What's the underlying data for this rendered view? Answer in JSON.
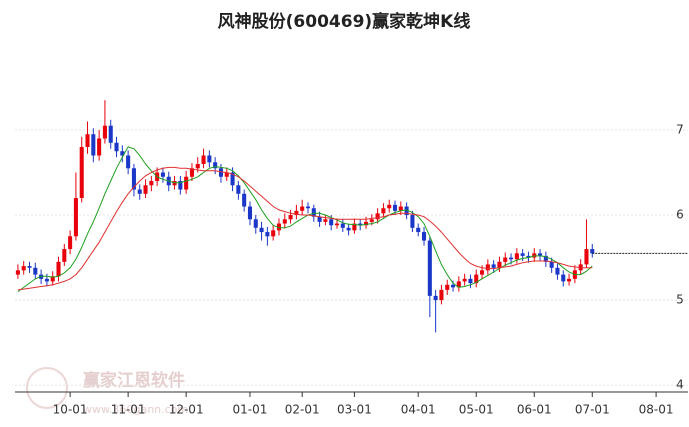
{
  "chart_data": {
    "type": "candlestick",
    "title": "风神股份(600469)赢家乾坤K线",
    "watermark": "赢家江恩软件",
    "watermark_url": "www.360gann.com",
    "up_color": "#e8000b",
    "down_color": "#1a37c8",
    "xlim": [
      0,
      116
    ],
    "xticks": [
      {
        "value": 9.5,
        "label": "10-01"
      },
      {
        "value": 19.5,
        "label": "11-01"
      },
      {
        "value": 29.5,
        "label": "12-01"
      },
      {
        "value": 40.5,
        "label": "01-01"
      },
      {
        "value": 49.5,
        "label": "02-01"
      },
      {
        "value": 58.5,
        "label": "03-01"
      },
      {
        "value": 69.5,
        "label": "04-01"
      },
      {
        "value": 79.5,
        "label": "05-01"
      },
      {
        "value": 89.5,
        "label": "06-01"
      },
      {
        "value": 99.5,
        "label": "07-01"
      },
      {
        "value": 110.5,
        "label": "08-01"
      }
    ],
    "ylim": [
      3.92,
      7.94
    ],
    "yticks": [
      4,
      5,
      6,
      7
    ],
    "grid": true,
    "ohlc": [
      [
        5.3,
        5.42,
        5.25,
        5.35
      ],
      [
        5.35,
        5.46,
        5.3,
        5.4
      ],
      [
        5.4,
        5.45,
        5.32,
        5.38
      ],
      [
        5.38,
        5.44,
        5.25,
        5.3
      ],
      [
        5.3,
        5.36,
        5.19,
        5.25
      ],
      [
        5.25,
        5.31,
        5.16,
        5.22
      ],
      [
        5.22,
        5.34,
        5.17,
        5.28
      ],
      [
        5.28,
        5.51,
        5.22,
        5.45
      ],
      [
        5.45,
        5.66,
        5.4,
        5.6
      ],
      [
        5.6,
        5.82,
        5.54,
        5.75
      ],
      [
        5.75,
        6.5,
        5.7,
        6.2
      ],
      [
        6.2,
        6.92,
        6.15,
        6.8
      ],
      [
        6.8,
        7.1,
        6.72,
        6.95
      ],
      [
        6.95,
        7.02,
        6.62,
        6.7
      ],
      [
        6.7,
        7.0,
        6.64,
        6.9
      ],
      [
        6.9,
        7.35,
        6.84,
        7.05
      ],
      [
        7.05,
        7.12,
        6.78,
        6.85
      ],
      [
        6.85,
        6.92,
        6.68,
        6.75
      ],
      [
        6.75,
        6.82,
        6.62,
        6.7
      ],
      [
        6.7,
        6.76,
        6.48,
        6.55
      ],
      [
        6.55,
        6.6,
        6.22,
        6.3
      ],
      [
        6.3,
        6.36,
        6.18,
        6.25
      ],
      [
        6.25,
        6.42,
        6.2,
        6.35
      ],
      [
        6.35,
        6.46,
        6.28,
        6.4
      ],
      [
        6.4,
        6.56,
        6.34,
        6.5
      ],
      [
        6.5,
        6.56,
        6.38,
        6.45
      ],
      [
        6.45,
        6.51,
        6.28,
        6.35
      ],
      [
        6.35,
        6.46,
        6.3,
        6.4
      ],
      [
        6.4,
        6.46,
        6.24,
        6.3
      ],
      [
        6.3,
        6.52,
        6.25,
        6.45
      ],
      [
        6.45,
        6.61,
        6.4,
        6.55
      ],
      [
        6.55,
        6.68,
        6.5,
        6.6
      ],
      [
        6.6,
        6.78,
        6.55,
        6.7
      ],
      [
        6.7,
        6.76,
        6.56,
        6.62
      ],
      [
        6.62,
        6.68,
        6.48,
        6.55
      ],
      [
        6.55,
        6.6,
        6.38,
        6.45
      ],
      [
        6.45,
        6.56,
        6.4,
        6.5
      ],
      [
        6.5,
        6.56,
        6.28,
        6.35
      ],
      [
        6.35,
        6.4,
        6.18,
        6.25
      ],
      [
        6.25,
        6.3,
        6.04,
        6.1
      ],
      [
        6.1,
        6.16,
        5.88,
        5.95
      ],
      [
        5.95,
        6.0,
        5.78,
        5.85
      ],
      [
        5.85,
        5.92,
        5.7,
        5.8
      ],
      [
        5.8,
        5.86,
        5.64,
        5.75
      ],
      [
        5.75,
        5.88,
        5.7,
        5.82
      ],
      [
        5.82,
        5.96,
        5.76,
        5.9
      ],
      [
        5.9,
        6.02,
        5.84,
        5.95
      ],
      [
        5.95,
        6.06,
        5.9,
        6.0
      ],
      [
        6.0,
        6.12,
        5.95,
        6.05
      ],
      [
        6.05,
        6.18,
        6.0,
        6.1
      ],
      [
        6.1,
        6.15,
        6.02,
        6.08
      ],
      [
        6.08,
        6.12,
        5.92,
        5.98
      ],
      [
        5.98,
        6.04,
        5.86,
        5.92
      ],
      [
        5.92,
        6.0,
        5.88,
        5.95
      ],
      [
        5.95,
        6.0,
        5.82,
        5.88
      ],
      [
        5.88,
        5.96,
        5.84,
        5.9
      ],
      [
        5.9,
        5.95,
        5.8,
        5.85
      ],
      [
        5.85,
        5.9,
        5.76,
        5.82
      ],
      [
        5.82,
        5.96,
        5.78,
        5.9
      ],
      [
        5.9,
        5.95,
        5.82,
        5.88
      ],
      [
        5.88,
        5.98,
        5.84,
        5.92
      ],
      [
        5.92,
        6.01,
        5.88,
        5.95
      ],
      [
        5.95,
        6.08,
        5.9,
        6.02
      ],
      [
        6.02,
        6.14,
        5.97,
        6.08
      ],
      [
        6.08,
        6.18,
        6.03,
        6.12
      ],
      [
        6.12,
        6.17,
        6.0,
        6.05
      ],
      [
        6.05,
        6.16,
        6.0,
        6.1
      ],
      [
        6.1,
        6.15,
        5.95,
        6.0
      ],
      [
        6.0,
        6.05,
        5.8,
        5.85
      ],
      [
        5.85,
        5.9,
        5.75,
        5.8
      ],
      [
        5.8,
        5.86,
        5.64,
        5.7
      ],
      [
        5.7,
        5.74,
        4.8,
        5.05
      ],
      [
        5.05,
        5.12,
        4.62,
        5.0
      ],
      [
        5.0,
        5.18,
        4.95,
        5.12
      ],
      [
        5.12,
        5.24,
        5.06,
        5.18
      ],
      [
        5.18,
        5.23,
        5.1,
        5.15
      ],
      [
        5.15,
        5.28,
        5.1,
        5.22
      ],
      [
        5.22,
        5.31,
        5.17,
        5.25
      ],
      [
        5.25,
        5.3,
        5.14,
        5.2
      ],
      [
        5.2,
        5.36,
        5.15,
        5.3
      ],
      [
        5.3,
        5.41,
        5.25,
        5.35
      ],
      [
        5.35,
        5.48,
        5.3,
        5.42
      ],
      [
        5.42,
        5.47,
        5.32,
        5.38
      ],
      [
        5.38,
        5.51,
        5.33,
        5.45
      ],
      [
        5.45,
        5.56,
        5.4,
        5.5
      ],
      [
        5.5,
        5.55,
        5.42,
        5.48
      ],
      [
        5.48,
        5.61,
        5.43,
        5.55
      ],
      [
        5.55,
        5.6,
        5.46,
        5.52
      ],
      [
        5.52,
        5.57,
        5.44,
        5.5
      ],
      [
        5.5,
        5.61,
        5.45,
        5.55
      ],
      [
        5.55,
        5.6,
        5.46,
        5.52
      ],
      [
        5.52,
        5.57,
        5.39,
        5.45
      ],
      [
        5.45,
        5.5,
        5.32,
        5.38
      ],
      [
        5.38,
        5.43,
        5.24,
        5.3
      ],
      [
        5.3,
        5.35,
        5.16,
        5.22
      ],
      [
        5.22,
        5.31,
        5.17,
        5.25
      ],
      [
        5.25,
        5.41,
        5.2,
        5.35
      ],
      [
        5.35,
        5.48,
        5.3,
        5.42
      ],
      [
        5.42,
        5.95,
        5.38,
        5.6
      ],
      [
        5.6,
        5.66,
        5.5,
        5.55
      ]
    ],
    "ma_lines": [
      {
        "color": "#1e9e1e",
        "values": [
          5.1,
          5.15,
          5.2,
          5.25,
          5.28,
          5.28,
          5.27,
          5.28,
          5.32,
          5.38,
          5.48,
          5.62,
          5.78,
          5.92,
          6.08,
          6.25,
          6.4,
          6.55,
          6.68,
          6.8,
          6.78,
          6.7,
          6.6,
          6.52,
          6.45,
          6.42,
          6.4,
          6.38,
          6.38,
          6.4,
          6.42,
          6.45,
          6.5,
          6.55,
          6.57,
          6.56,
          6.55,
          6.52,
          6.46,
          6.38,
          6.28,
          6.18,
          6.06,
          5.96,
          5.88,
          5.85,
          5.85,
          5.87,
          5.92,
          5.96,
          6.0,
          6.02,
          6.02,
          6.0,
          5.97,
          5.94,
          5.91,
          5.89,
          5.89,
          5.88,
          5.89,
          5.9,
          5.92,
          5.96,
          6.0,
          6.03,
          6.05,
          6.06,
          6.03,
          5.98,
          5.9,
          5.75,
          5.58,
          5.42,
          5.3,
          5.2,
          5.15,
          5.16,
          5.18,
          5.21,
          5.25,
          5.29,
          5.33,
          5.37,
          5.41,
          5.44,
          5.47,
          5.49,
          5.5,
          5.52,
          5.52,
          5.51,
          5.48,
          5.44,
          5.38,
          5.33,
          5.3,
          5.3,
          5.34,
          5.4
        ]
      },
      {
        "color": "#e03030",
        "values": [
          5.12,
          5.13,
          5.14,
          5.15,
          5.16,
          5.17,
          5.18,
          5.2,
          5.22,
          5.25,
          5.3,
          5.38,
          5.48,
          5.58,
          5.68,
          5.8,
          5.92,
          6.04,
          6.15,
          6.25,
          6.33,
          6.4,
          6.46,
          6.5,
          6.53,
          6.55,
          6.56,
          6.56,
          6.55,
          6.55,
          6.54,
          6.53,
          6.52,
          6.52,
          6.52,
          6.51,
          6.5,
          6.48,
          6.45,
          6.4,
          6.34,
          6.28,
          6.22,
          6.16,
          6.1,
          6.06,
          6.04,
          6.02,
          6.01,
          6.0,
          6.0,
          5.99,
          5.98,
          5.97,
          5.96,
          5.95,
          5.95,
          5.95,
          5.95,
          5.95,
          5.95,
          5.96,
          5.97,
          5.98,
          6.0,
          6.01,
          6.02,
          6.02,
          6.01,
          6.0,
          5.98,
          5.93,
          5.87,
          5.8,
          5.72,
          5.64,
          5.56,
          5.49,
          5.43,
          5.4,
          5.38,
          5.37,
          5.37,
          5.38,
          5.39,
          5.4,
          5.42,
          5.44,
          5.45,
          5.46,
          5.46,
          5.46,
          5.45,
          5.44,
          5.42,
          5.4,
          5.39,
          5.38,
          5.38,
          5.38
        ]
      }
    ]
  }
}
